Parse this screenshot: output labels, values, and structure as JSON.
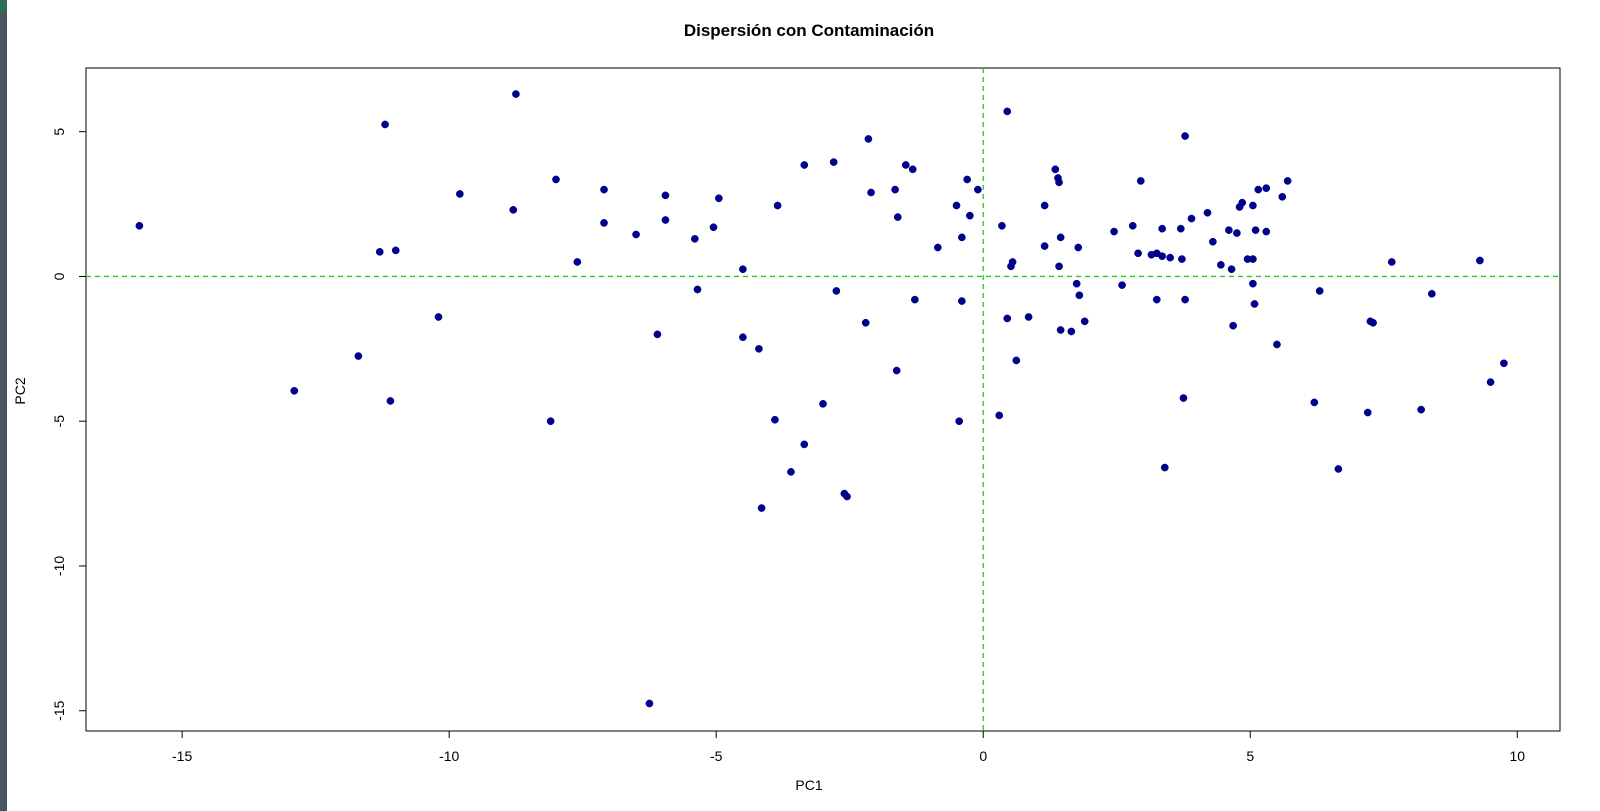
{
  "colors": {
    "point": "#00008b",
    "reference_line": "#22cc22",
    "axis": "#000000",
    "background": "#ffffff"
  },
  "chart_data": {
    "type": "scatter",
    "title": "Dispersión con Contaminación",
    "xlabel": "PC1",
    "ylabel": "PC2",
    "xlim": [
      -16.8,
      10.8
    ],
    "ylim": [
      -15.7,
      7.2
    ],
    "xticks": [
      -15,
      -10,
      -5,
      0,
      5,
      10
    ],
    "yticks": [
      -15,
      -10,
      -5,
      0,
      5
    ],
    "xtick_labels": [
      "-15",
      "-10",
      "-5",
      "0",
      "5",
      "10"
    ],
    "ytick_labels": [
      "-15",
      "-10",
      "-5",
      "0",
      "5"
    ],
    "grid": false,
    "legend": "none",
    "reference_lines": {
      "x": 0,
      "y": 0,
      "style": "dashed"
    },
    "points": [
      [
        -15.8,
        1.75
      ],
      [
        -12.9,
        -3.95
      ],
      [
        -11.7,
        -2.75
      ],
      [
        -11.3,
        0.85
      ],
      [
        -11.2,
        5.25
      ],
      [
        -11.1,
        -4.3
      ],
      [
        -11.0,
        0.9
      ],
      [
        -10.2,
        -1.4
      ],
      [
        -9.8,
        2.85
      ],
      [
        -8.8,
        2.3
      ],
      [
        -8.75,
        6.3
      ],
      [
        -8.1,
        -5.0
      ],
      [
        -8.0,
        3.35
      ],
      [
        -7.6,
        0.5
      ],
      [
        -7.1,
        3.0
      ],
      [
        -7.1,
        1.85
      ],
      [
        -6.5,
        1.45
      ],
      [
        -6.1,
        -2.0
      ],
      [
        -5.95,
        2.8
      ],
      [
        -5.95,
        1.95
      ],
      [
        -6.25,
        -14.75
      ],
      [
        -5.4,
        1.3
      ],
      [
        -5.35,
        -0.45
      ],
      [
        -5.05,
        1.7
      ],
      [
        -4.95,
        2.7
      ],
      [
        -4.5,
        0.25
      ],
      [
        -4.5,
        -2.1
      ],
      [
        -4.2,
        -2.5
      ],
      [
        -4.15,
        -8.0
      ],
      [
        -3.9,
        -4.95
      ],
      [
        -3.85,
        2.45
      ],
      [
        -3.6,
        -6.75
      ],
      [
        -3.35,
        3.85
      ],
      [
        -3.35,
        -5.8
      ],
      [
        -3.0,
        -4.4
      ],
      [
        -2.8,
        3.95
      ],
      [
        -2.75,
        -0.5
      ],
      [
        -2.6,
        -7.5
      ],
      [
        -2.55,
        -7.6
      ],
      [
        -2.2,
        -1.6
      ],
      [
        -2.15,
        4.75
      ],
      [
        -2.1,
        2.9
      ],
      [
        -1.65,
        3.0
      ],
      [
        -1.6,
        2.05
      ],
      [
        -1.62,
        -3.25
      ],
      [
        -1.45,
        3.85
      ],
      [
        -1.32,
        3.7
      ],
      [
        -1.28,
        -0.8
      ],
      [
        -0.85,
        1.0
      ],
      [
        -0.5,
        2.45
      ],
      [
        -0.45,
        -5.0
      ],
      [
        -0.4,
        1.35
      ],
      [
        -0.4,
        -0.85
      ],
      [
        -0.3,
        3.35
      ],
      [
        -0.25,
        2.1
      ],
      [
        -0.1,
        3.0
      ],
      [
        0.3,
        -4.8
      ],
      [
        0.35,
        1.75
      ],
      [
        0.45,
        -1.45
      ],
      [
        0.45,
        5.7
      ],
      [
        0.52,
        0.35
      ],
      [
        0.55,
        0.5
      ],
      [
        0.62,
        -2.9
      ],
      [
        0.85,
        -1.4
      ],
      [
        1.15,
        2.45
      ],
      [
        1.15,
        1.05
      ],
      [
        1.35,
        3.7
      ],
      [
        1.4,
        3.4
      ],
      [
        1.42,
        3.25
      ],
      [
        1.42,
        0.35
      ],
      [
        1.45,
        1.35
      ],
      [
        1.45,
        -1.85
      ],
      [
        1.65,
        -1.9
      ],
      [
        1.75,
        -0.25
      ],
      [
        1.78,
        1.0
      ],
      [
        1.8,
        -0.65
      ],
      [
        1.9,
        -1.55
      ],
      [
        2.45,
        1.55
      ],
      [
        2.6,
        -0.3
      ],
      [
        2.8,
        1.75
      ],
      [
        2.9,
        0.8
      ],
      [
        2.95,
        3.3
      ],
      [
        3.15,
        0.75
      ],
      [
        3.25,
        0.8
      ],
      [
        3.25,
        -0.8
      ],
      [
        3.35,
        1.65
      ],
      [
        3.35,
        0.7
      ],
      [
        3.4,
        -6.6
      ],
      [
        3.5,
        0.65
      ],
      [
        3.7,
        1.65
      ],
      [
        3.72,
        0.6
      ],
      [
        3.75,
        -4.2
      ],
      [
        3.78,
        4.85
      ],
      [
        3.78,
        -0.8
      ],
      [
        3.9,
        2.0
      ],
      [
        4.2,
        2.2
      ],
      [
        4.3,
        1.2
      ],
      [
        4.45,
        0.4
      ],
      [
        4.6,
        1.6
      ],
      [
        4.65,
        0.25
      ],
      [
        4.68,
        -1.7
      ],
      [
        4.75,
        1.5
      ],
      [
        4.8,
        2.4
      ],
      [
        4.85,
        2.55
      ],
      [
        4.95,
        0.6
      ],
      [
        5.05,
        2.45
      ],
      [
        5.05,
        0.6
      ],
      [
        5.05,
        -0.25
      ],
      [
        5.08,
        -0.95
      ],
      [
        5.1,
        1.6
      ],
      [
        5.15,
        3.0
      ],
      [
        5.3,
        3.05
      ],
      [
        5.3,
        1.55
      ],
      [
        5.5,
        -2.35
      ],
      [
        5.6,
        2.75
      ],
      [
        5.7,
        3.3
      ],
      [
        6.2,
        -4.35
      ],
      [
        6.3,
        -0.5
      ],
      [
        6.65,
        -6.65
      ],
      [
        7.2,
        -4.7
      ],
      [
        7.25,
        -1.55
      ],
      [
        7.3,
        -1.6
      ],
      [
        7.65,
        0.5
      ],
      [
        8.2,
        -4.6
      ],
      [
        8.4,
        -0.6
      ],
      [
        9.3,
        0.55
      ],
      [
        9.5,
        -3.65
      ],
      [
        9.75,
        -3.0
      ]
    ]
  }
}
